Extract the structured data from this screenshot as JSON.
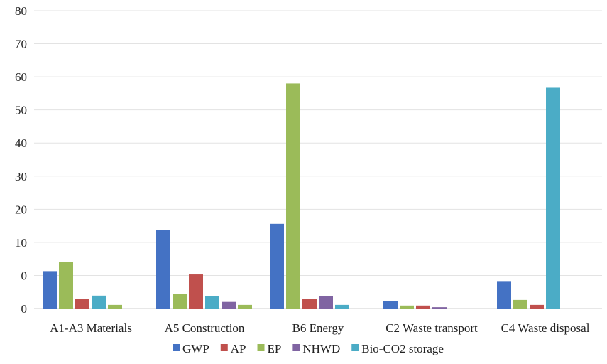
{
  "chart_data": {
    "type": "bar",
    "title": "",
    "xlabel": "",
    "ylabel": "",
    "ylim": [
      0,
      80
    ],
    "y_tick_labels": [
      "0",
      "0",
      "10",
      "20",
      "30",
      "40",
      "50",
      "60",
      "70",
      "80"
    ],
    "grid": "horizontal",
    "legend_position": "bottom",
    "categories": [
      "A1-A3 Materials",
      "A5 Construction",
      "B6 Energy",
      "C2 Waste transport",
      "C4 Waste disposal"
    ],
    "series": [
      {
        "name": "GWP",
        "color": "#4472C4",
        "values": [
          11.3,
          23.8,
          25.6,
          2.2,
          8.3
        ]
      },
      {
        "name": "AP",
        "color": "#C0504D",
        "values": [
          2.8,
          10.3,
          3.0,
          0.9,
          1.1
        ]
      },
      {
        "name": "EP",
        "color": "#9BBB59",
        "values": [
          14.0,
          4.5,
          68.0,
          0.9,
          2.6
        ]
      },
      {
        "name": "NHWD",
        "color": "#8064A2",
        "values": [
          0,
          2.0,
          3.8,
          0.4,
          0
        ]
      },
      {
        "name": "Bio-CO2 storage",
        "color": "#4BACC6",
        "values": [
          3.9,
          3.8,
          1.1,
          0,
          66.7
        ]
      }
    ],
    "bar_order": [
      [
        "GWP",
        "EP",
        "AP",
        "Bio-CO2 storage",
        "EP"
      ],
      [
        "GWP",
        "EP",
        "AP",
        "Bio-CO2 storage",
        "NHWD",
        "EP"
      ],
      [
        "GWP",
        "EP",
        "AP",
        "NHWD",
        "Bio-CO2 storage"
      ],
      [
        "GWP",
        "EP",
        "AP",
        "NHWD"
      ],
      [
        "GWP",
        "EP",
        "AP",
        "Bio-CO2 storage"
      ]
    ],
    "bar_values_secondary_ep": [
      1.1,
      1.1
    ]
  }
}
